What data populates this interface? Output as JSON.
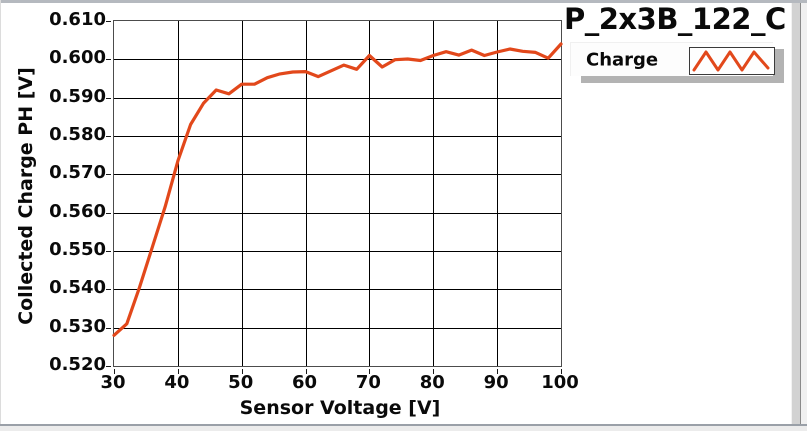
{
  "chart_data": {
    "type": "line",
    "title": "P_2x3B_122_C",
    "xlabel": "Sensor Voltage [V]",
    "ylabel": "Collected Charge PH [V]",
    "xlim": [
      30,
      100
    ],
    "ylim": [
      0.52,
      0.61
    ],
    "x_ticks": [
      30,
      40,
      50,
      60,
      70,
      80,
      90,
      100
    ],
    "x_tick_labels": [
      "30",
      "40",
      "50",
      "60",
      "70",
      "80",
      "90",
      "100"
    ],
    "y_ticks": [
      0.52,
      0.53,
      0.54,
      0.55,
      0.56,
      0.57,
      0.58,
      0.59,
      0.6,
      0.61
    ],
    "y_tick_labels": [
      "0.520",
      "0.530",
      "0.540",
      "0.550",
      "0.560",
      "0.570",
      "0.580",
      "0.590",
      "0.600",
      "0.610"
    ],
    "grid": true,
    "legend_position": "outside-top-right",
    "series": [
      {
        "name": "Charge",
        "color": "#e2481b",
        "x": [
          30,
          32,
          34,
          36,
          38,
          40,
          42,
          44,
          46,
          48,
          50,
          52,
          54,
          56,
          58,
          60,
          62,
          64,
          66,
          68,
          70,
          72,
          74,
          76,
          78,
          80,
          82,
          84,
          86,
          88,
          90,
          92,
          94,
          96,
          98,
          100
        ],
        "values": [
          0.528,
          0.531,
          0.5405,
          0.551,
          0.5615,
          0.5735,
          0.583,
          0.5885,
          0.592,
          0.591,
          0.5935,
          0.5935,
          0.5952,
          0.5962,
          0.5967,
          0.5968,
          0.5955,
          0.597,
          0.5985,
          0.5974,
          0.601,
          0.598,
          0.5999,
          0.6001,
          0.5997,
          0.601,
          0.602,
          0.6011,
          0.6024,
          0.601,
          0.6019,
          0.6027,
          0.6021,
          0.6018,
          0.6003,
          0.604
        ]
      }
    ]
  },
  "legend": {
    "label": "Charge",
    "sample_icon": "zigzag-line-sample"
  },
  "colors": {
    "series": "#e2481b",
    "grid": "#000000",
    "frame_bevel": "#b5b9bf",
    "legend_shadow": "#b3b3b3",
    "text": "#0a0a0a"
  }
}
